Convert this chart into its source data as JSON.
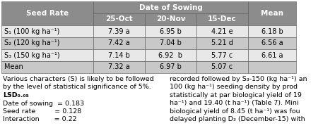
{
  "rows": [
    [
      "S₁ (100 kg ha⁻¹)",
      "7.39 a",
      "6.95 b",
      "4.21 e",
      "6.18 b"
    ],
    [
      "S₂ (120 kg ha⁻¹)",
      "7.42 a",
      "7.04 b",
      "5.21 d",
      "6.56 a"
    ],
    [
      "S₃ (150 kg ha⁻¹)",
      "7.14 b",
      "6.92  b",
      "5.77 c",
      "6.61 a"
    ],
    [
      "Mean",
      "7.32 a",
      "6.97 b",
      "5.07 c",
      ""
    ]
  ],
  "header_bg": "#8c8c8c",
  "header_text_color": "#ffffff",
  "row_bg_alt": "#c8c8c8",
  "row_bg_plain": "#e8e8e8",
  "mean_bg": "#e8e8e8",
  "border_color": "#000000",
  "text_color": "#000000",
  "footer_left": [
    "Various characters (S) is likely to be followed",
    "by the level of statistical significance of 5%.",
    "LSD₀.₀₅",
    "Date of sowing  = 0.183",
    "Seed rate         = 0.128",
    "Interaction       = 0.22"
  ],
  "footer_right": [
    "recorded followed by S₃-150 (kg ha⁻¹) an",
    "100 (kg ha⁻¹) seeding density by prod",
    "statistically at par biological yield of 19",
    "ha⁻¹) and 19.40 (t ha⁻¹) (Table 7). Mini",
    "biological yield of 8.45 (t ha⁻¹) was fou",
    "delayed planting D₃ (December-15) with"
  ]
}
